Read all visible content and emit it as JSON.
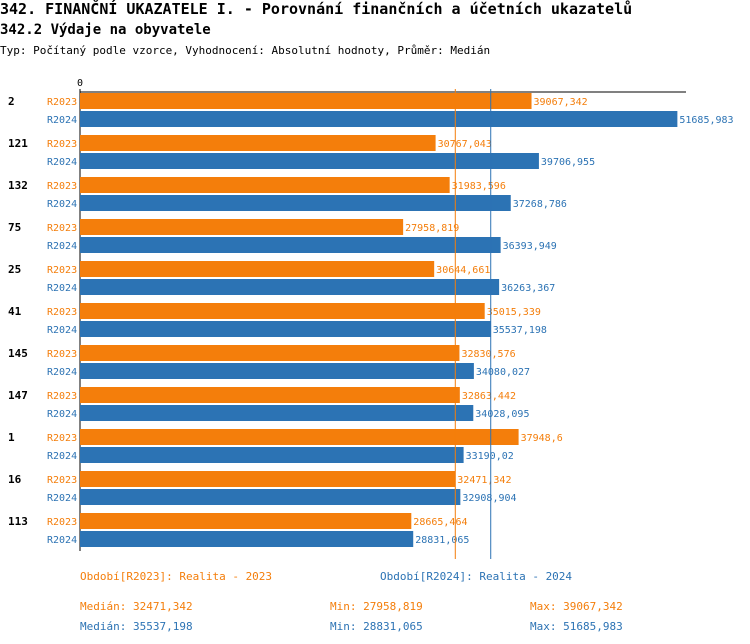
{
  "header": {
    "title": "342. FINANČNÍ UKAZATELE I. - Porovnání finančních a účetních ukazatelů",
    "subtitle": "342.2 Výdaje na obyvatele",
    "type_line": "Typ: Počítaný podle vzorce, Vyhodnocení: Absolutní hodnoty, Průměr: Medián"
  },
  "colors": {
    "r2023": "#f47e0b",
    "r2024": "#2c73b4"
  },
  "chart_data": {
    "type": "bar",
    "orientation": "horizontal",
    "axis_zero_label": "0",
    "xlim": [
      0,
      52000000
    ],
    "categories": [
      "2",
      "121",
      "132",
      "75",
      "25",
      "41",
      "145",
      "147",
      "1",
      "16",
      "113"
    ],
    "series": [
      {
        "name": "R2023",
        "values": [
          39067342,
          30767043,
          31983596,
          27958819,
          30644661,
          35015339,
          32830576,
          32863442,
          37948600,
          32471342,
          28665464
        ],
        "labels": [
          "39067,342",
          "30767,043",
          "31983,596",
          "27958,819",
          "30644,661",
          "35015,339",
          "32830,576",
          "32863,442",
          "37948,6",
          "32471,342",
          "28665,464"
        ]
      },
      {
        "name": "R2024",
        "values": [
          51685983,
          39706955,
          37268786,
          36393949,
          36263367,
          35537198,
          34080027,
          34028095,
          33190020,
          32908904,
          28831065
        ],
        "labels": [
          "51685,983",
          "39706,955",
          "37268,786",
          "36393,949",
          "36263,367",
          "35537,198",
          "34080,027",
          "34028,095",
          "33190,02",
          "32908,904",
          "28831,065"
        ]
      }
    ],
    "median_lines": {
      "R2023": 32471342,
      "R2024": 35537198
    }
  },
  "footer": {
    "legend_2023": "Období[R2023]: Realita - 2023",
    "legend_2024": "Období[R2024]: Realita - 2024",
    "median_2023": "Medián: 32471,342",
    "min_2023": "Min: 27958,819",
    "max_2023": "Max: 39067,342",
    "median_2024": "Medián: 35537,198",
    "min_2024": "Min: 28831,065",
    "max_2024": "Max: 51685,983"
  }
}
